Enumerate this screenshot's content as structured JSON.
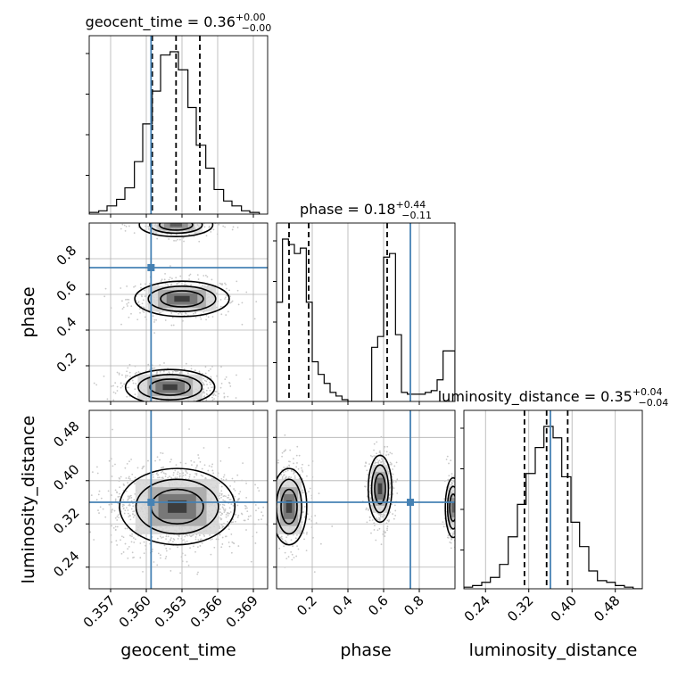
{
  "chart_data": {
    "type": "corner",
    "parameters": [
      "geocent_time",
      "phase",
      "luminosity_distance"
    ],
    "truth": {
      "geocent_time": 0.3604,
      "phase": 0.75,
      "luminosity_distance": 0.36
    },
    "colors": {
      "truth": "#4682b4",
      "hist": "#000000",
      "grid": "#b0b0b0",
      "scatter": "#c8c8c8"
    },
    "titles": [
      {
        "param": "geocent_time",
        "text": "geocent_time = 0.36",
        "sup": "+0.00",
        "sub": "−0.00"
      },
      {
        "param": "phase",
        "text": "phase = 0.18",
        "sup": "+0.44",
        "sub": "−0.11"
      },
      {
        "param": "luminosity_distance",
        "text": "luminosity_distance = 0.35",
        "sup": "+0.04",
        "sub": "−0.04"
      }
    ],
    "axes": {
      "geocent_time": {
        "range": [
          0.3552,
          0.3702
        ],
        "ticks": [
          0.357,
          0.36,
          0.363,
          0.366,
          0.369
        ],
        "tick_labels": [
          "0.357",
          "0.360",
          "0.363",
          "0.366",
          "0.369"
        ],
        "quantiles": [
          0.3605,
          0.3625,
          0.3645
        ]
      },
      "phase": {
        "range": [
          0.0,
          1.0
        ],
        "ticks": [
          0.2,
          0.4,
          0.6,
          0.8
        ],
        "tick_labels": [
          "0.2",
          "0.4",
          "0.6",
          "0.8"
        ],
        "quantiles": [
          0.07,
          0.18,
          0.62
        ]
      },
      "luminosity_distance": {
        "range": [
          0.2,
          0.53
        ],
        "ticks": [
          0.24,
          0.32,
          0.4,
          0.48
        ],
        "tick_labels": [
          "0.24",
          "0.32",
          "0.40",
          "0.48"
        ],
        "quantiles": [
          0.312,
          0.353,
          0.392
        ]
      }
    },
    "histograms": {
      "geocent_time": {
        "edges": [
          0.3552,
          0.356,
          0.3567,
          0.3575,
          0.3582,
          0.359,
          0.3597,
          0.3605,
          0.3612,
          0.362,
          0.3627,
          0.3635,
          0.3642,
          0.365,
          0.3657,
          0.3665,
          0.3672,
          0.368,
          0.3687,
          0.3695
        ],
        "counts": [
          0.01,
          0.02,
          0.05,
          0.09,
          0.16,
          0.32,
          0.55,
          0.75,
          0.97,
          0.99,
          0.88,
          0.65,
          0.42,
          0.28,
          0.15,
          0.08,
          0.05,
          0.02,
          0.01
        ]
      },
      "phase": {
        "edges": [
          0.0,
          0.0333,
          0.0667,
          0.1,
          0.1333,
          0.1667,
          0.2,
          0.2333,
          0.2667,
          0.3,
          0.3333,
          0.3667,
          0.4,
          0.4333,
          0.4667,
          0.5,
          0.5333,
          0.5667,
          0.6,
          0.6333,
          0.6667,
          0.7,
          0.7333,
          0.7667,
          0.8,
          0.8333,
          0.8667,
          0.9,
          0.9333,
          0.9667,
          1.0
        ],
        "counts": [
          0.55,
          0.9,
          0.87,
          0.82,
          0.85,
          0.55,
          0.22,
          0.15,
          0.1,
          0.05,
          0.03,
          0.01,
          0.0,
          0.0,
          0.0,
          0.0,
          0.3,
          0.36,
          0.8,
          0.82,
          0.37,
          0.05,
          0.04,
          0.04,
          0.04,
          0.05,
          0.06,
          0.12,
          0.28,
          0.28
        ]
      },
      "luminosity_distance": {
        "edges": [
          0.2,
          0.216,
          0.233,
          0.249,
          0.266,
          0.282,
          0.299,
          0.315,
          0.332,
          0.348,
          0.365,
          0.381,
          0.398,
          0.414,
          0.431,
          0.447,
          0.464,
          0.48,
          0.497,
          0.513,
          0.53
        ],
        "counts": [
          0.01,
          0.02,
          0.04,
          0.07,
          0.15,
          0.32,
          0.52,
          0.71,
          0.87,
          1.0,
          0.93,
          0.69,
          0.41,
          0.26,
          0.11,
          0.05,
          0.04,
          0.02,
          0.01,
          0.0
        ]
      }
    },
    "density_modes": {
      "geocent_time__phase": [
        {
          "x": 0.363,
          "y": 0.575,
          "sx": 0.0018,
          "sy": 0.045,
          "w": 0.8
        },
        {
          "x": 0.362,
          "y": 0.08,
          "sx": 0.0017,
          "sy": 0.045,
          "w": 1.0
        },
        {
          "x": 0.3625,
          "y": 0.99,
          "sx": 0.0014,
          "sy": 0.03,
          "w": 0.4
        }
      ],
      "geocent_time__luminosity_distance": [
        {
          "x": 0.3626,
          "y": 0.352,
          "sx": 0.0022,
          "sy": 0.032,
          "w": 1.0
        }
      ],
      "phase__luminosity_distance": [
        {
          "x": 0.07,
          "y": 0.352,
          "sx": 0.045,
          "sy": 0.032,
          "w": 1.0
        },
        {
          "x": 0.58,
          "y": 0.385,
          "sx": 0.03,
          "sy": 0.028,
          "w": 0.85
        },
        {
          "x": 0.99,
          "y": 0.35,
          "sx": 0.02,
          "sy": 0.025,
          "w": 0.5
        }
      ]
    }
  }
}
